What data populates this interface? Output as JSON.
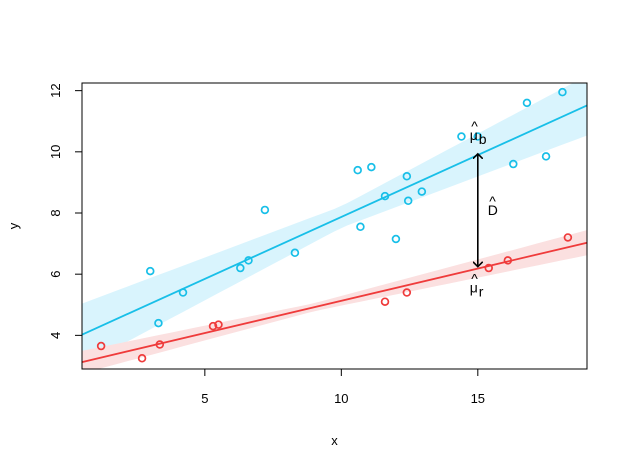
{
  "chart_data": {
    "type": "scatter",
    "xlabel": "x",
    "ylabel": "y",
    "xlim": [
      0.5,
      19.0
    ],
    "ylim": [
      2.9,
      12.25
    ],
    "x_ticks": [
      5,
      10,
      15
    ],
    "y_ticks": [
      4,
      6,
      8,
      10,
      12
    ],
    "grid": false,
    "series": [
      {
        "color": "#18bfe8",
        "band_color": "#d9f4fd",
        "points": [
          [
            3.0,
            6.1
          ],
          [
            3.3,
            4.4
          ],
          [
            4.2,
            5.4
          ],
          [
            6.3,
            6.2
          ],
          [
            6.6,
            6.45
          ],
          [
            7.2,
            8.1
          ],
          [
            8.3,
            6.7
          ],
          [
            10.6,
            9.4
          ],
          [
            10.7,
            7.55
          ],
          [
            11.1,
            9.5
          ],
          [
            11.6,
            8.55
          ],
          [
            12.0,
            7.15
          ],
          [
            12.4,
            9.2
          ],
          [
            12.45,
            8.4
          ],
          [
            12.95,
            8.7
          ],
          [
            14.4,
            10.5
          ],
          [
            15.0,
            10.5
          ],
          [
            16.3,
            9.6
          ],
          [
            16.8,
            11.6
          ],
          [
            17.5,
            9.85
          ],
          [
            18.1,
            11.95
          ]
        ],
        "fit": {
          "intercept": 3.82,
          "slope": 0.405
        },
        "band_halfwidth": {
          "center_x": 10.0,
          "min": 0.35,
          "growth": 0.07
        }
      },
      {
        "color": "#ef3b3b",
        "band_color": "#fbe0e0",
        "points": [
          [
            1.2,
            3.65
          ],
          [
            2.7,
            3.25
          ],
          [
            3.35,
            3.7
          ],
          [
            5.3,
            4.3
          ],
          [
            5.5,
            4.35
          ],
          [
            11.6,
            5.1
          ],
          [
            12.4,
            5.4
          ],
          [
            15.4,
            6.2
          ],
          [
            16.1,
            6.45
          ],
          [
            18.3,
            7.2
          ]
        ],
        "fit": {
          "intercept": 3.02,
          "slope": 0.211
        },
        "band_halfwidth": {
          "center_x": 9.0,
          "min": 0.13,
          "growth": 0.028
        }
      }
    ],
    "annotations": {
      "arrow_x": 15.0,
      "arrow_top": 10.0,
      "arrow_bottom": 6.18,
      "mu_b_label": "μ",
      "mu_b_hat": "^",
      "mu_b_sub": "b",
      "mu_r_label": "μ",
      "mu_r_hat": "^",
      "mu_r_sub": "r",
      "d_label": "D",
      "d_hat": "^"
    }
  }
}
